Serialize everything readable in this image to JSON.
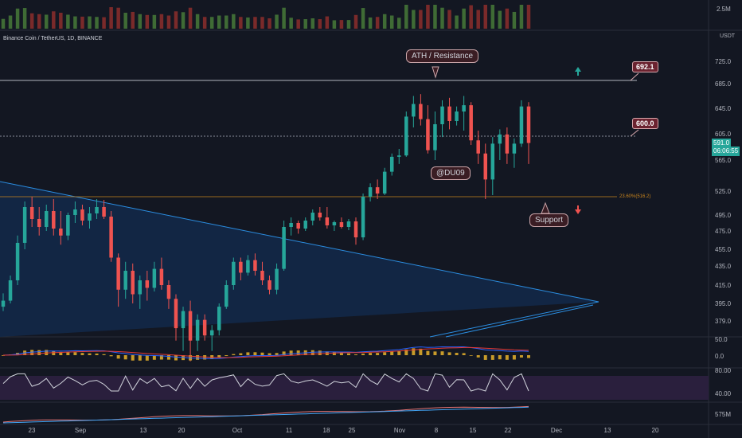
{
  "header": {
    "symbol": "Binance Coin / TetherUS, 1D, BINANCE",
    "currency": "USDT"
  },
  "annotations": {
    "ath_label": "ATH / Resistance",
    "author_label": "@DU09",
    "support_label": "Support",
    "fib_label": "23.60%(516.2)",
    "level_high": "692.1",
    "level_mid": "600.0"
  },
  "last_price": {
    "value": "591.0",
    "countdown": "06:06:55"
  },
  "colors": {
    "up": "#26a69a",
    "down": "#ef5350",
    "volume_up": "#3f6b35",
    "volume_down": "#7a2a2a",
    "triangle_fill": "#13294a",
    "triangle_line": "#2b8de0",
    "fib": "#c8841d",
    "macd_line": "#2962ff",
    "signal_line": "#e53935",
    "histogram": "#c89b2a",
    "rsi_line": "#d1d4dc",
    "rsi_band": "#2a1f3d",
    "arrow_up": "#26a69a",
    "arrow_down": "#ef5350"
  },
  "chart_data": {
    "type": "candlestick",
    "title": "Binance Coin / TetherUS, 1D, BINANCE",
    "price_axis_labels": [
      "725.0",
      "685.0",
      "645.0",
      "605.0",
      "565.0",
      "525.0",
      "495.0",
      "475.0",
      "455.0",
      "435.0",
      "415.0",
      "395.0",
      "379.0"
    ],
    "volume_axis_label": "2.5M",
    "macd_axis_labels": [
      "50.0",
      "0.0"
    ],
    "rsi_axis_labels": [
      "80.00",
      "40.00"
    ],
    "obv_axis_label": "575M",
    "date_labels": [
      "23",
      "Sep",
      "13",
      "20",
      "Oct",
      "11",
      "18",
      "25",
      "Nov",
      "8",
      "15",
      "22",
      "Dec",
      "13",
      "20"
    ],
    "candles": [
      [
        392,
        406,
        388,
        398
      ],
      [
        398,
        425,
        395,
        420
      ],
      [
        420,
        470,
        415,
        462
      ],
      [
        462,
        512,
        455,
        505
      ],
      [
        505,
        518,
        480,
        490
      ],
      [
        490,
        505,
        470,
        480
      ],
      [
        480,
        508,
        475,
        500
      ],
      [
        500,
        515,
        470,
        478
      ],
      [
        478,
        500,
        460,
        470
      ],
      [
        470,
        498,
        465,
        495
      ],
      [
        495,
        512,
        485,
        502
      ],
      [
        502,
        508,
        482,
        488
      ],
      [
        488,
        505,
        478,
        497
      ],
      [
        497,
        515,
        490,
        505
      ],
      [
        505,
        514,
        490,
        493
      ],
      [
        493,
        500,
        440,
        445
      ],
      [
        445,
        450,
        392,
        410
      ],
      [
        410,
        440,
        400,
        430
      ],
      [
        430,
        438,
        395,
        405
      ],
      [
        405,
        425,
        390,
        420
      ],
      [
        420,
        430,
        398,
        412
      ],
      [
        412,
        440,
        408,
        432
      ],
      [
        432,
        445,
        410,
        415
      ],
      [
        415,
        420,
        390,
        400
      ],
      [
        400,
        405,
        360,
        372
      ],
      [
        372,
        392,
        350,
        388
      ],
      [
        388,
        398,
        340,
        360
      ],
      [
        360,
        385,
        350,
        380
      ],
      [
        380,
        385,
        360,
        365
      ],
      [
        365,
        375,
        350,
        370
      ],
      [
        370,
        395,
        365,
        392
      ],
      [
        392,
        420,
        390,
        415
      ],
      [
        415,
        445,
        410,
        440
      ],
      [
        440,
        445,
        420,
        428
      ],
      [
        428,
        448,
        425,
        442
      ],
      [
        442,
        450,
        425,
        430
      ],
      [
        430,
        440,
        415,
        420
      ],
      [
        420,
        425,
        405,
        410
      ],
      [
        410,
        438,
        405,
        432
      ],
      [
        432,
        488,
        430,
        480
      ],
      [
        480,
        492,
        470,
        485
      ],
      [
        485,
        488,
        472,
        478
      ],
      [
        478,
        492,
        475,
        488
      ],
      [
        488,
        502,
        482,
        498
      ],
      [
        498,
        505,
        488,
        492
      ],
      [
        492,
        505,
        478,
        482
      ],
      [
        482,
        488,
        475,
        486
      ],
      [
        486,
        492,
        478,
        480
      ],
      [
        480,
        490,
        476,
        487
      ],
      [
        487,
        492,
        460,
        468
      ],
      [
        468,
        522,
        465,
        518
      ],
      [
        518,
        535,
        512,
        530
      ],
      [
        530,
        540,
        515,
        522
      ],
      [
        522,
        555,
        520,
        550
      ],
      [
        550,
        575,
        545,
        570
      ],
      [
        570,
        582,
        560,
        572
      ],
      [
        572,
        640,
        570,
        632
      ],
      [
        632,
        665,
        615,
        652
      ],
      [
        652,
        668,
        618,
        628
      ],
      [
        628,
        650,
        575,
        580
      ],
      [
        580,
        640,
        565,
        620
      ],
      [
        620,
        658,
        600,
        648
      ],
      [
        648,
        662,
        612,
        625
      ],
      [
        625,
        648,
        618,
        640
      ],
      [
        640,
        665,
        610,
        650
      ],
      [
        650,
        655,
        588,
        595
      ],
      [
        595,
        610,
        560,
        575
      ],
      [
        575,
        590,
        515,
        540
      ],
      [
        540,
        600,
        520,
        590
      ],
      [
        590,
        612,
        565,
        604
      ],
      [
        604,
        615,
        560,
        575
      ],
      [
        575,
        598,
        555,
        590
      ],
      [
        590,
        658,
        585,
        648
      ],
      [
        648,
        655,
        560,
        591
      ]
    ],
    "key_levels": [
      {
        "name": "ATH / Resistance",
        "value": 692.1
      },
      {
        "name": "",
        "value": 600.0
      },
      {
        "name": "Support",
        "value": 516.2
      }
    ],
    "triangle_pattern": {
      "upper": [
        [
          0,
          530
        ],
        [
          86,
          398
        ]
      ],
      "lower": [
        [
          50,
          440
        ],
        [
          86,
          398
        ]
      ]
    },
    "grid": false
  }
}
